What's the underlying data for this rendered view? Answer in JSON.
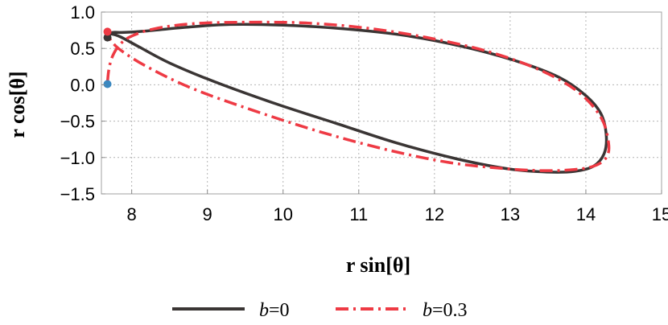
{
  "chart_data": {
    "type": "line",
    "title": "",
    "xlabel": "r sin[θ]",
    "ylabel": "r cos[θ]",
    "xlim": [
      7.6,
      15.0
    ],
    "ylim": [
      -1.5,
      1.0
    ],
    "xticks": [
      8,
      9,
      10,
      11,
      12,
      13,
      14,
      15
    ],
    "yticks": [
      1.0,
      0.5,
      0.0,
      -0.5,
      -1.0,
      -1.5
    ],
    "xtick_labels": [
      "8",
      "9",
      "10",
      "11",
      "12",
      "13",
      "14",
      "15"
    ],
    "ytick_labels": [
      "1.0",
      "0.5",
      "0.0",
      "−0.5",
      "−1.0",
      "−1.5"
    ],
    "grid": true,
    "legend_position": "bottom",
    "series": [
      {
        "name": "b=0",
        "legend_var": "b",
        "legend_val": "=0",
        "color": "#3a3534",
        "style": "solid",
        "x": [
          7.68,
          7.69,
          7.75,
          7.9,
          8.2,
          8.7,
          9.3,
          10.0,
          10.8,
          11.6,
          12.4,
          13.1,
          13.65,
          14.0,
          14.2,
          14.27,
          14.24,
          14.1,
          13.85,
          13.5,
          13.0,
          12.3,
          11.5,
          10.7,
          9.9,
          9.1,
          8.5,
          8.1,
          7.85,
          7.72,
          7.68
        ],
        "y": [
          0.65,
          0.69,
          0.72,
          0.72,
          0.74,
          0.79,
          0.83,
          0.82,
          0.77,
          0.68,
          0.52,
          0.32,
          0.1,
          -0.15,
          -0.4,
          -0.7,
          -0.95,
          -1.12,
          -1.19,
          -1.2,
          -1.16,
          -1.02,
          -0.8,
          -0.53,
          -0.26,
          0.04,
          0.3,
          0.52,
          0.66,
          0.7,
          0.67
        ]
      },
      {
        "name": "b=0.3",
        "legend_var": "b",
        "legend_val": "=0.3",
        "color": "#ee3a44",
        "style": "dashdot",
        "x": [
          7.68,
          7.7,
          7.75,
          7.85,
          8.0,
          8.3,
          8.8,
          9.5,
          10.3,
          11.1,
          11.9,
          12.7,
          13.4,
          13.9,
          14.2,
          14.3,
          14.27,
          14.1,
          13.8,
          13.4,
          12.9,
          12.2,
          11.4,
          10.5,
          9.6,
          8.8,
          8.2,
          7.85,
          7.72,
          7.68
        ],
        "y": [
          0.03,
          0.22,
          0.4,
          0.56,
          0.67,
          0.77,
          0.84,
          0.86,
          0.85,
          0.78,
          0.65,
          0.46,
          0.2,
          -0.1,
          -0.45,
          -0.8,
          -1.0,
          -1.12,
          -1.17,
          -1.18,
          -1.15,
          -1.07,
          -0.9,
          -0.65,
          -0.35,
          -0.05,
          0.25,
          0.48,
          0.62,
          0.72
        ]
      }
    ],
    "markers": [
      {
        "x": 7.68,
        "y": 0.65,
        "color": "#3a3534"
      },
      {
        "x": 7.68,
        "y": 0.73,
        "color": "#ee3a44"
      },
      {
        "x": 7.68,
        "y": 0.01,
        "color": "#3b88c0"
      }
    ]
  }
}
